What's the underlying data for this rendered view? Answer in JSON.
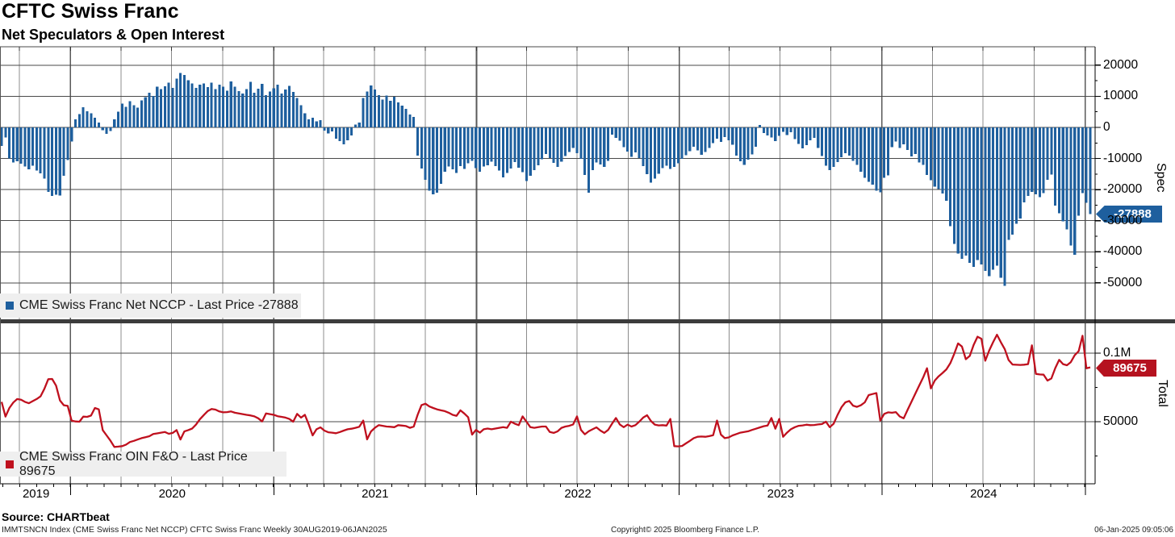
{
  "header": {
    "title": "CFTC Swiss Franc",
    "subtitle": "Net Speculators & Open Interest"
  },
  "panels": {
    "spec": {
      "legend_label": "CME Swiss Franc Net NCCP - Last Price -27888",
      "axis_label": "Spec",
      "last_price_badge": "-27888",
      "tick_labels": [
        "20000",
        "10000",
        "0",
        "-10000",
        "-20000",
        "-30000",
        "-40000",
        "-50000"
      ],
      "tick_values": [
        20000,
        10000,
        0,
        -10000,
        -20000,
        -30000,
        -40000,
        -50000
      ],
      "series_color": "#1e5f9e",
      "badge_color": "#1e5f9e"
    },
    "total": {
      "legend_label": "CME Swiss Franc OIN F&O - Last Price 89675",
      "axis_label": "Total",
      "last_price_badge": "89675",
      "tick_labels": [
        "0.1M",
        "50000"
      ],
      "tick_values": [
        100000,
        50000
      ],
      "series_color": "#bf101e",
      "badge_color": "#b5121f"
    }
  },
  "x_axis": {
    "years": [
      "2019",
      "2020",
      "2021",
      "2022",
      "2023",
      "2024"
    ]
  },
  "footer": {
    "source": "Source: CHARTbeat",
    "ticker_line": "IMMTSNCN Index (CME Swiss Franc Net NCCP) CFTC Swiss Franc  Weekly 30AUG2019-06JAN2025",
    "copyright": "Copyright© 2025 Bloomberg Finance L.P.",
    "timestamp": "06-Jan-2025 09:05:06"
  },
  "chart_data": [
    {
      "type": "bar",
      "name": "CME Swiss Franc Net NCCP",
      "ylabel": "Spec",
      "legend_position": "bottom-left",
      "grid": true,
      "frequency": "weekly",
      "x_start": "30AUG2019",
      "x_end": "06JAN2025",
      "ylim": [
        -56000,
        26000
      ],
      "last_price": -27888,
      "values": [
        -6000,
        -3200,
        -10000,
        -11300,
        -10900,
        -11700,
        -12600,
        -13500,
        -12300,
        -13900,
        -14800,
        -16500,
        -20800,
        -22000,
        -21600,
        -21900,
        -15500,
        -10500,
        -4500,
        2600,
        4300,
        6500,
        5200,
        4600,
        3100,
        1500,
        -900,
        -2100,
        -1200,
        2600,
        5100,
        7600,
        6600,
        8400,
        7100,
        6400,
        8700,
        9700,
        11200,
        10100,
        13100,
        12300,
        13200,
        14400,
        12700,
        15700,
        17500,
        16900,
        15200,
        14100,
        12700,
        13700,
        14100,
        13000,
        14400,
        12300,
        13700,
        13100,
        11800,
        14800,
        13100,
        11700,
        10900,
        12300,
        14700,
        11100,
        12400,
        14000,
        10400,
        11600,
        12600,
        13700,
        10900,
        12200,
        13300,
        11400,
        9500,
        7100,
        4600,
        2600,
        3100,
        1900,
        2300,
        -1100,
        -1900,
        -1300,
        -3600,
        -4400,
        -5500,
        -4100,
        -2600,
        900,
        1600,
        9400,
        11600,
        13500,
        12200,
        10400,
        9000,
        10300,
        8600,
        9900,
        8100,
        7000,
        5900,
        4200,
        3400,
        -9100,
        -13200,
        -16900,
        -20400,
        -21500,
        -21000,
        -18200,
        -14300,
        -12600,
        -13500,
        -14600,
        -12400,
        -13300,
        -11600,
        -10800,
        -13100,
        -14200,
        -12600,
        -12200,
        -11000,
        -12500,
        -13900,
        -16100,
        -14700,
        -13200,
        -11100,
        -12900,
        -14400,
        -17200,
        -15600,
        -13800,
        -12200,
        -10300,
        -8600,
        -9900,
        -11400,
        -12700,
        -11000,
        -9200,
        -7900,
        -6600,
        -8300,
        -10100,
        -15300,
        -21000,
        -13800,
        -11300,
        -11900,
        -12700,
        -10800,
        -2300,
        -3400,
        -4300,
        -6400,
        -7800,
        -9500,
        -8100,
        -9800,
        -12400,
        -15100,
        -17700,
        -16400,
        -14900,
        -13100,
        -12300,
        -13400,
        -12700,
        -11600,
        -10100,
        -8900,
        -7600,
        -6200,
        -7400,
        -8800,
        -7900,
        -6600,
        -5000,
        -3600,
        -4700,
        -3100,
        -4200,
        -5600,
        -9100,
        -10900,
        -12100,
        -10400,
        -8700,
        -6200,
        800,
        -1800,
        -2600,
        -3200,
        -4400,
        -2700,
        -1400,
        -2500,
        -1600,
        -3800,
        -5300,
        -6800,
        -5700,
        -4100,
        -3400,
        -6600,
        -9200,
        -12300,
        -13800,
        -12700,
        -11200,
        -9600,
        -8300,
        -9100,
        -10800,
        -12100,
        -14300,
        -16200,
        -17500,
        -18400,
        -20300,
        -20900,
        -16200,
        -15400,
        -6300,
        -4600,
        -6600,
        -5400,
        -7300,
        -9300,
        -8500,
        -11300,
        -12000,
        -15300,
        -17000,
        -19100,
        -19800,
        -21200,
        -23600,
        -31700,
        -37400,
        -40600,
        -42300,
        -41200,
        -43500,
        -44800,
        -42600,
        -44100,
        -46200,
        -47800,
        -45700,
        -44400,
        -48300,
        -50900,
        -36200,
        -34500,
        -31000,
        -29300,
        -24100,
        -22000,
        -20700,
        -21500,
        -22400,
        -21100,
        -16800,
        -15200,
        -25100,
        -27600,
        -30200,
        -32800,
        -38000,
        -41000,
        -28400,
        -21100,
        -24300,
        -27888
      ]
    },
    {
      "type": "line",
      "name": "CME Swiss Franc OIN F&O",
      "ylabel": "Total",
      "legend_position": "bottom-left",
      "grid": true,
      "frequency": "weekly",
      "x_start": "30AUG2019",
      "x_end": "06JAN2025",
      "ylim": [
        5000,
        122000
      ],
      "last_price": 89675,
      "values": [
        64500,
        53700,
        60000,
        64000,
        66500,
        66000,
        64500,
        63500,
        65000,
        66500,
        68500,
        74000,
        81000,
        81200,
        76300,
        65500,
        62000,
        61500,
        50800,
        50200,
        50000,
        53700,
        53500,
        54500,
        60000,
        59000,
        43900,
        40000,
        36100,
        31600,
        31800,
        32200,
        33300,
        35200,
        36000,
        37000,
        38000,
        38700,
        39400,
        41000,
        41500,
        42000,
        42500,
        41200,
        41800,
        43900,
        37000,
        42900,
        43900,
        45000,
        47900,
        51800,
        54800,
        57700,
        59300,
        58800,
        57500,
        56800,
        57000,
        57500,
        56500,
        56000,
        55500,
        55000,
        54600,
        53900,
        52500,
        50200,
        56000,
        55500,
        55000,
        54000,
        53500,
        53000,
        52000,
        50000,
        55700,
        53000,
        55000,
        48000,
        40000,
        44500,
        45900,
        43500,
        42300,
        42000,
        41600,
        42500,
        43500,
        44500,
        44900,
        45500,
        46300,
        50800,
        37100,
        42900,
        45500,
        47500,
        47000,
        46500,
        46300,
        46000,
        47500,
        47200,
        46800,
        45500,
        46500,
        55000,
        62100,
        63100,
        61100,
        60000,
        59000,
        58300,
        57700,
        56500,
        55000,
        54300,
        58300,
        56000,
        53300,
        40600,
        44000,
        42000,
        44500,
        45000,
        44500,
        45000,
        45500,
        46000,
        45500,
        50000,
        48500,
        47500,
        53900,
        50000,
        46000,
        45500,
        46000,
        46500,
        46500,
        42500,
        41800,
        43000,
        45500,
        46500,
        47000,
        48000,
        53900,
        44000,
        40800,
        43000,
        44500,
        45900,
        43500,
        41800,
        44000,
        48500,
        52700,
        48000,
        46000,
        47900,
        46500,
        47500,
        50000,
        53000,
        54700,
        50500,
        47900,
        47300,
        47500,
        47200,
        52000,
        32200,
        32000,
        32300,
        34200,
        36000,
        38000,
        39000,
        39200,
        39000,
        39500,
        40200,
        50800,
        40600,
        38000,
        38500,
        40000,
        41000,
        42000,
        42500,
        43000,
        44000,
        44900,
        45800,
        46700,
        47200,
        52700,
        44900,
        52000,
        39000,
        42000,
        44500,
        46000,
        47000,
        47300,
        47800,
        47500,
        47600,
        48000,
        48300,
        50000,
        46000,
        48500,
        54900,
        60500,
        64100,
        65100,
        61700,
        60800,
        62000,
        64100,
        69400,
        70200,
        70900,
        50800,
        55700,
        56800,
        56500,
        57000,
        53800,
        52500,
        58600,
        64500,
        70400,
        76300,
        82100,
        89000,
        74300,
        80000,
        83100,
        85500,
        88200,
        92700,
        99500,
        107100,
        104800,
        95600,
        98000,
        106000,
        112000,
        110500,
        94500,
        101800,
        108000,
        113500,
        108000,
        103000,
        95000,
        91700,
        91500,
        91400,
        91600,
        92000,
        105700,
        84900,
        84500,
        84300,
        80000,
        81500,
        89200,
        95100,
        92000,
        91200,
        93500,
        98500,
        101400,
        112700,
        89000,
        89675
      ]
    }
  ]
}
